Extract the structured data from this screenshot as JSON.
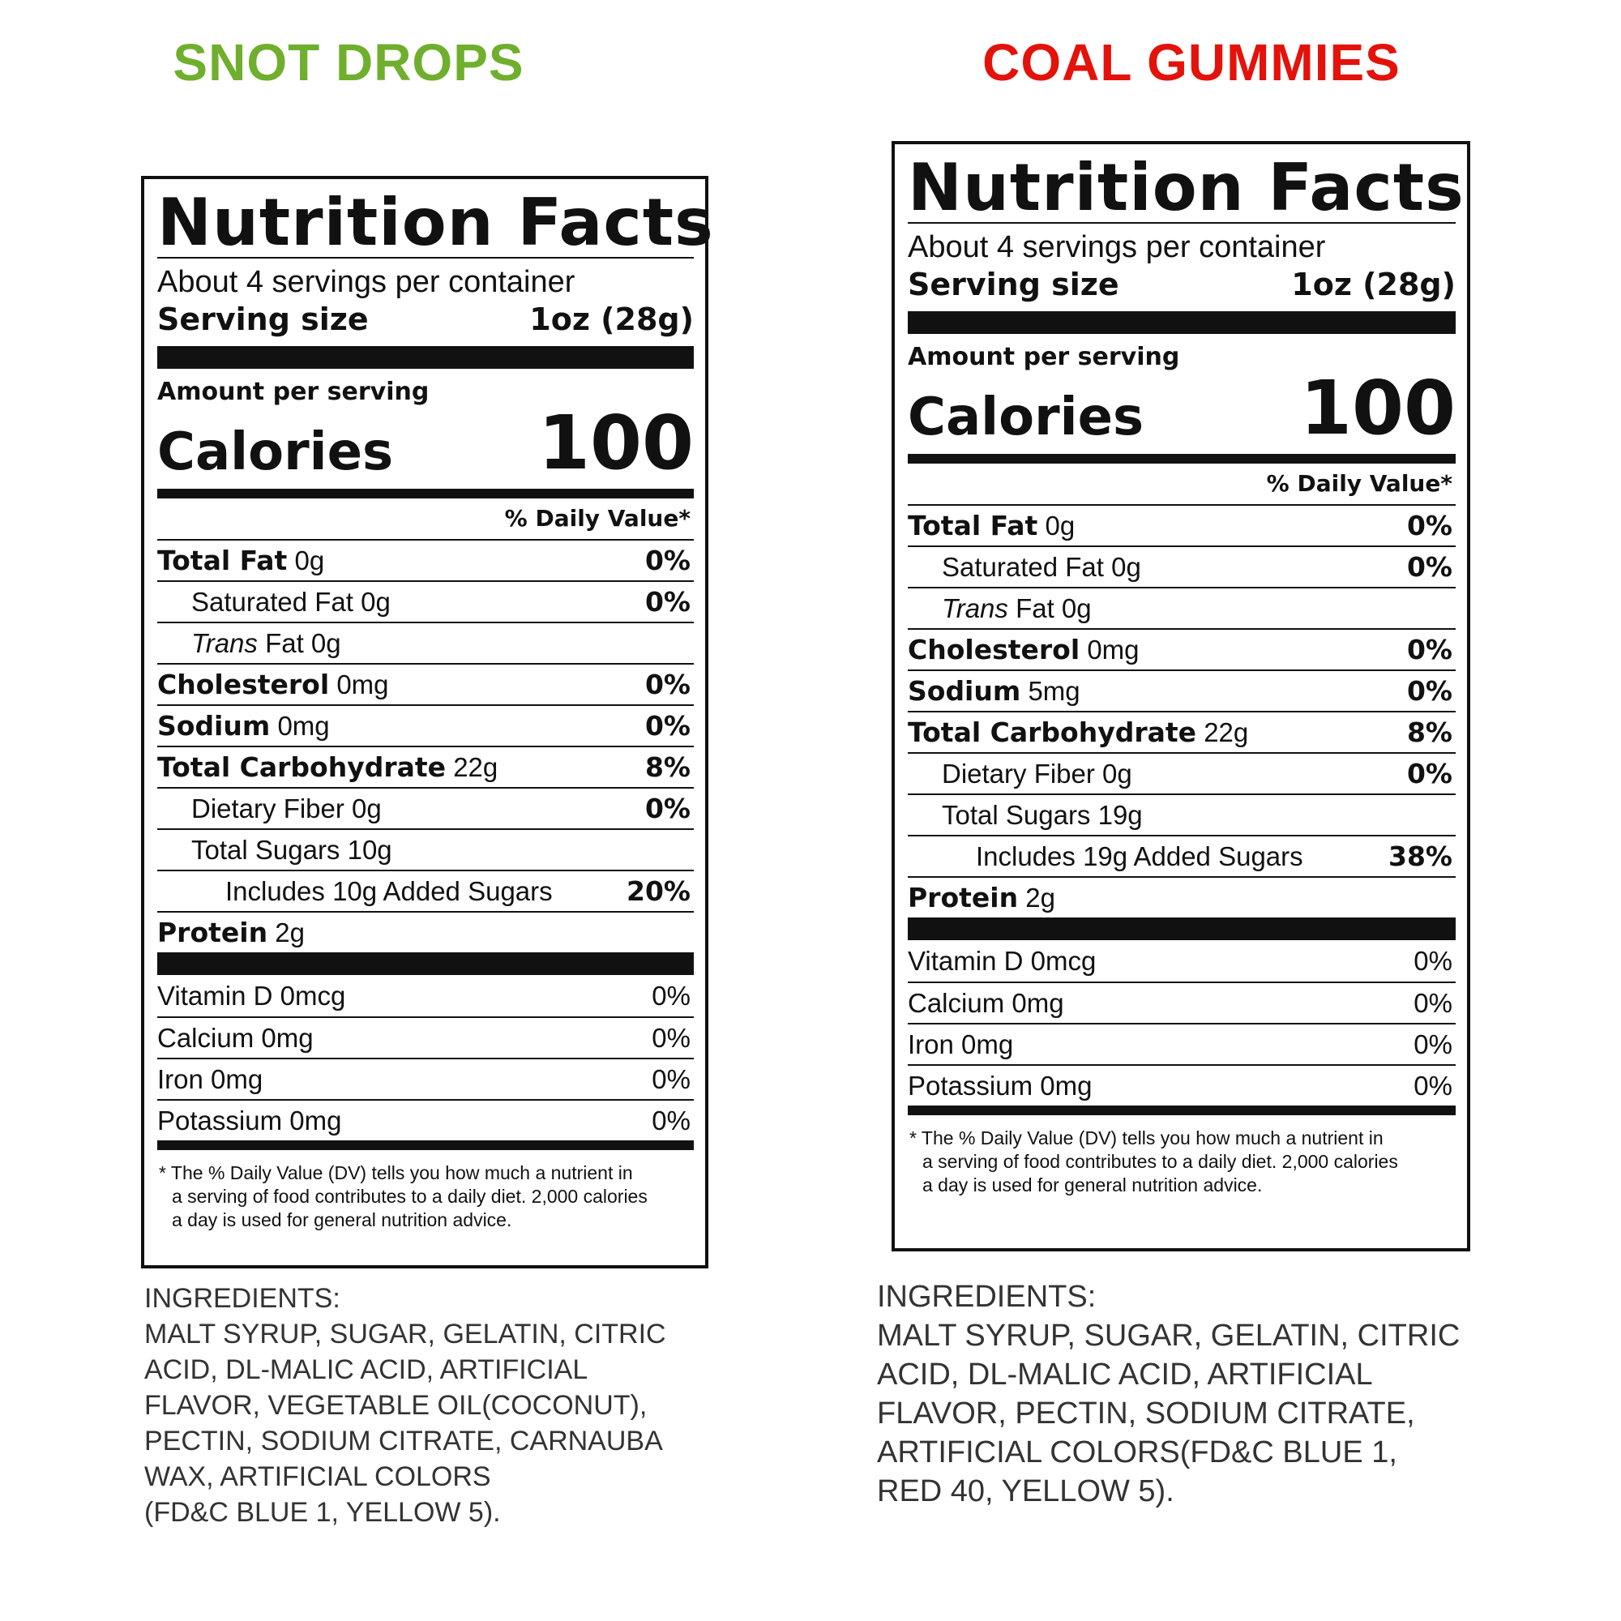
{
  "labels": [
    {
      "product": "SNOT DROPS",
      "product_color": "#6FAF2D",
      "nf_title": "Nutrition Facts",
      "servings_per_container": "About 4 servings per container",
      "serving_size_label": "Serving size",
      "serving_size_value": "1oz (28g)",
      "amount_per_serving": "Amount per serving",
      "calories_label": "Calories",
      "calories_value": "100",
      "dv_header": "% Daily Value*",
      "rows": [
        {
          "label": "Total Fat",
          "amount": "0g",
          "dv": "0%"
        },
        {
          "label": "Saturated Fat 0g",
          "amount": "",
          "dv": "0%"
        },
        {
          "label": "Trans",
          "amount": "Fat 0g",
          "dv": ""
        },
        {
          "label": "Cholesterol",
          "amount": "0mg",
          "dv": "0%"
        },
        {
          "label": "Sodium",
          "amount": "0mg",
          "dv": "0%"
        },
        {
          "label": "Total Carbohydrate",
          "amount": "22g",
          "dv": "8%"
        },
        {
          "label": "Dietary Fiber 0g",
          "amount": "",
          "dv": "0%"
        },
        {
          "label": "Total Sugars 10g",
          "amount": "",
          "dv": ""
        },
        {
          "label": "Includes 10g Added Sugars",
          "amount": "",
          "dv": "20%"
        },
        {
          "label": "Protein",
          "amount": "2g",
          "dv": ""
        }
      ],
      "vitamins": [
        {
          "label": "Vitamin D 0mcg",
          "dv": "0%"
        },
        {
          "label": "Calcium 0mg",
          "dv": "0%"
        },
        {
          "label": "Iron 0mg",
          "dv": "0%"
        },
        {
          "label": "Potassium 0mg",
          "dv": "0%"
        }
      ],
      "footnote": [
        "* The % Daily Value (DV) tells you how much a nutrient in",
        "a serving of food contributes to a daily diet. 2,000 calories",
        "a day is used for general nutrition advice."
      ],
      "ingredients": [
        "INGREDIENTS:",
        "MALT SYRUP, SUGAR, GELATIN, CITRIC",
        "ACID, DL-MALIC ACID, ARTIFICIAL",
        "FLAVOR, VEGETABLE OIL(COCONUT),",
        "PECTIN, SODIUM CITRATE, CARNAUBA",
        "WAX, ARTIFICIAL COLORS",
        "(FD&C BLUE 1, YELLOW 5)."
      ]
    },
    {
      "product": "COAL GUMMIES",
      "product_color": "#E3120B",
      "nf_title": "Nutrition Facts",
      "servings_per_container": "About 4 servings per container",
      "serving_size_label": "Serving size",
      "serving_size_value": "1oz (28g)",
      "amount_per_serving": "Amount per serving",
      "calories_label": "Calories",
      "calories_value": "100",
      "dv_header": "% Daily Value*",
      "rows": [
        {
          "label": "Total Fat",
          "amount": "0g",
          "dv": "0%"
        },
        {
          "label": "Saturated Fat 0g",
          "amount": "",
          "dv": "0%"
        },
        {
          "label": "Trans",
          "amount": "Fat 0g",
          "dv": ""
        },
        {
          "label": "Cholesterol",
          "amount": "0mg",
          "dv": "0%"
        },
        {
          "label": "Sodium",
          "amount": "5mg",
          "dv": "0%"
        },
        {
          "label": "Total Carbohydrate",
          "amount": "22g",
          "dv": "8%"
        },
        {
          "label": "Dietary Fiber 0g",
          "amount": "",
          "dv": "0%"
        },
        {
          "label": "Total Sugars 19g",
          "amount": "",
          "dv": ""
        },
        {
          "label": "Includes 19g Added Sugars",
          "amount": "",
          "dv": "38%"
        },
        {
          "label": "Protein",
          "amount": "2g",
          "dv": ""
        }
      ],
      "vitamins": [
        {
          "label": "Vitamin D 0mcg",
          "dv": "0%"
        },
        {
          "label": "Calcium 0mg",
          "dv": "0%"
        },
        {
          "label": "Iron 0mg",
          "dv": "0%"
        },
        {
          "label": "Potassium 0mg",
          "dv": "0%"
        }
      ],
      "footnote": [
        "* The % Daily Value (DV) tells you how much a nutrient in",
        "a serving of food contributes to a daily diet. 2,000 calories",
        "a day is used for general nutrition advice."
      ],
      "ingredients": [
        "INGREDIENTS:",
        "MALT SYRUP, SUGAR, GELATIN, CITRIC",
        "ACID, DL-MALIC ACID, ARTIFICIAL",
        "FLAVOR, PECTIN, SODIUM CITRATE,",
        "ARTIFICIAL COLORS(FD&C BLUE 1,",
        "RED 40, YELLOW 5)."
      ]
    }
  ]
}
